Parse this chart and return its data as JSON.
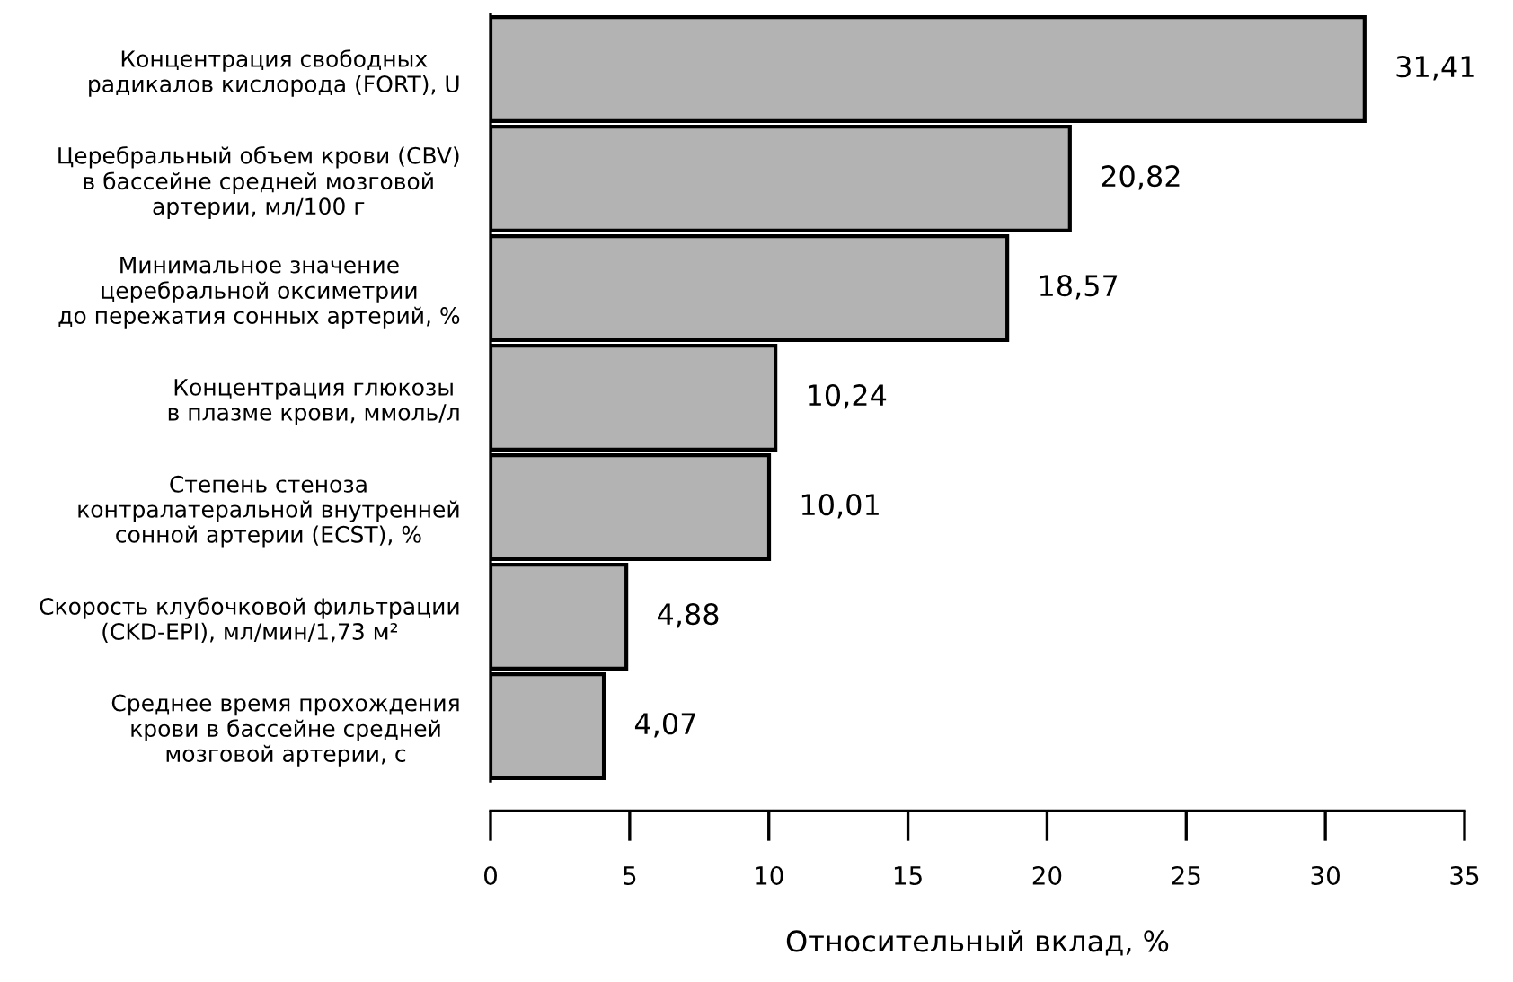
{
  "chart_data": {
    "type": "bar",
    "orientation": "horizontal",
    "categories": [
      "Концентрация свободных\nрадикалов кислорода (FORT), U",
      "Церебральный объем крови (CBV)\nв бассейне средней мозговой\nартерии, мл/100 г",
      "Минимальное значение\nцеребральной оксиметрии\nдо пережатия сонных артерий, %",
      "Концентрация глюкозы\nв плазме крови, ммоль/л",
      "Степень стеноза\nконтралатеральной внутренней\nсонной артерии (ECST), %",
      "Скорость клубочковой фильтрации\n(CKD-EPI), мл/мин/1,73 м²",
      "Среднее время прохождения\nкрови в бассейне средней\nмозговой артерии, с"
    ],
    "values": [
      31.41,
      20.82,
      18.57,
      10.24,
      10.01,
      4.88,
      4.07
    ],
    "value_labels": [
      "31,41",
      "20,82",
      "18,57",
      "10,24",
      "10,01",
      "4,88",
      "4,07"
    ],
    "color": "#b3b3b3",
    "xlim": [
      0,
      35
    ],
    "xticks": [
      0,
      5,
      10,
      15,
      20,
      25,
      30,
      35
    ],
    "xlabel": "Относительный вклад, %",
    "grid": false,
    "legend": false
  }
}
